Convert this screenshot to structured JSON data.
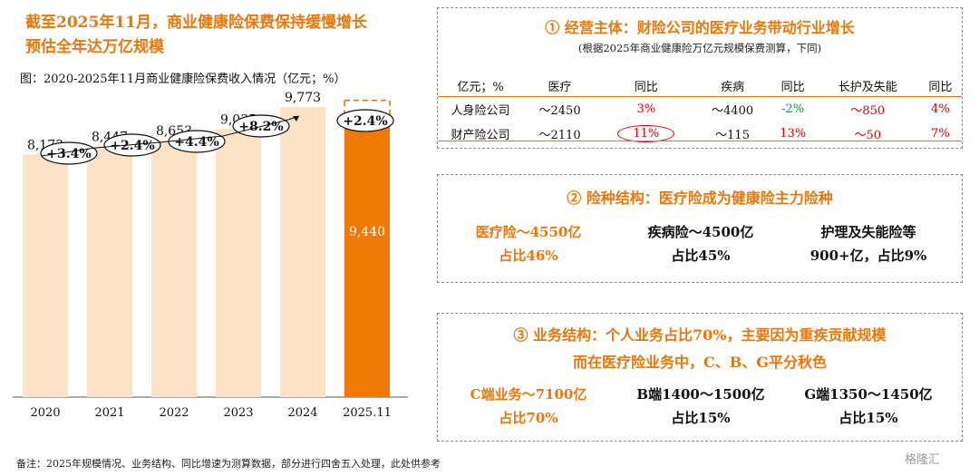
{
  "title_line1": "截至2025年11月，商业健康险保费保持缓慢增长",
  "title_line2": "预估全年达万亿规模",
  "subtitle": "图：2020-2025年11月商业健康险保费收入情况（亿元；%）",
  "colors": {
    "accent": "#E8780A",
    "bar_light": "#FCE3C8",
    "bar_highlight": "#EE7A05",
    "red": "#E00000",
    "green": "#00A040"
  },
  "chart_data": {
    "type": "bar",
    "categories": [
      "2020",
      "2021",
      "2022",
      "2023",
      "2024",
      "2025.11"
    ],
    "values": [
      8173,
      8447,
      8653,
      9035,
      9773,
      9440
    ],
    "value_labels": [
      "8,173",
      "8,447",
      "8,653",
      "9,035",
      "9,773",
      "9,440"
    ],
    "growth_labels": [
      "+3.4%",
      "+2.4%",
      "+4.4%",
      "+8.2%",
      "+2.4%"
    ],
    "highlight_category": "2025.11",
    "forecast_label": "全年预估万亿",
    "ylim": [
      0,
      11000
    ]
  },
  "box1": {
    "title": "① 经营主体：财险公司的医疗业务带动行业增长",
    "note": "(根据2025年商业健康险万亿元规模保费测算，下同)",
    "headers": [
      "亿元；%",
      "医疗",
      "同比",
      "疾病",
      "同比",
      "长护及失能",
      "同比"
    ],
    "rows": [
      {
        "name": "人身险公司",
        "medical": "～2450",
        "medical_yoy": "3%",
        "disease": "～4400",
        "disease_yoy": "-2%",
        "ltc": "～850",
        "ltc_yoy": "4%"
      },
      {
        "name": "财产险公司",
        "medical": "～2110",
        "medical_yoy": "11%",
        "disease": "～115",
        "disease_yoy": "13%",
        "ltc": "～50",
        "ltc_yoy": "7%"
      }
    ]
  },
  "box2": {
    "title": "② 险种结构：医疗险成为健康险主力险种",
    "items": [
      {
        "line1": "医疗险～4550亿",
        "line2": "占比46%"
      },
      {
        "line1": "疾病险～4500亿",
        "line2": "占比45%"
      },
      {
        "line1": "护理及失能险等",
        "line2": "900+亿，占比9%"
      }
    ]
  },
  "box3": {
    "title_line1": "③ 业务结构：个人业务占比70%，主要因为重疾贡献规模",
    "title_line2": "而在医疗险业务中，C、B、G平分秋色",
    "items": [
      {
        "line1": "C端业务～7100亿",
        "line2": "占比70%"
      },
      {
        "line1": "B端1400～1500亿",
        "line2": "占比15%"
      },
      {
        "line1": "G端1350～1450亿",
        "line2": "占比15%"
      }
    ]
  },
  "footer": "备注：2025年规模情况、业务结构、同比增速为测算数据，部分进行四舍五入处理，此处供参考",
  "watermark": "格隆汇"
}
